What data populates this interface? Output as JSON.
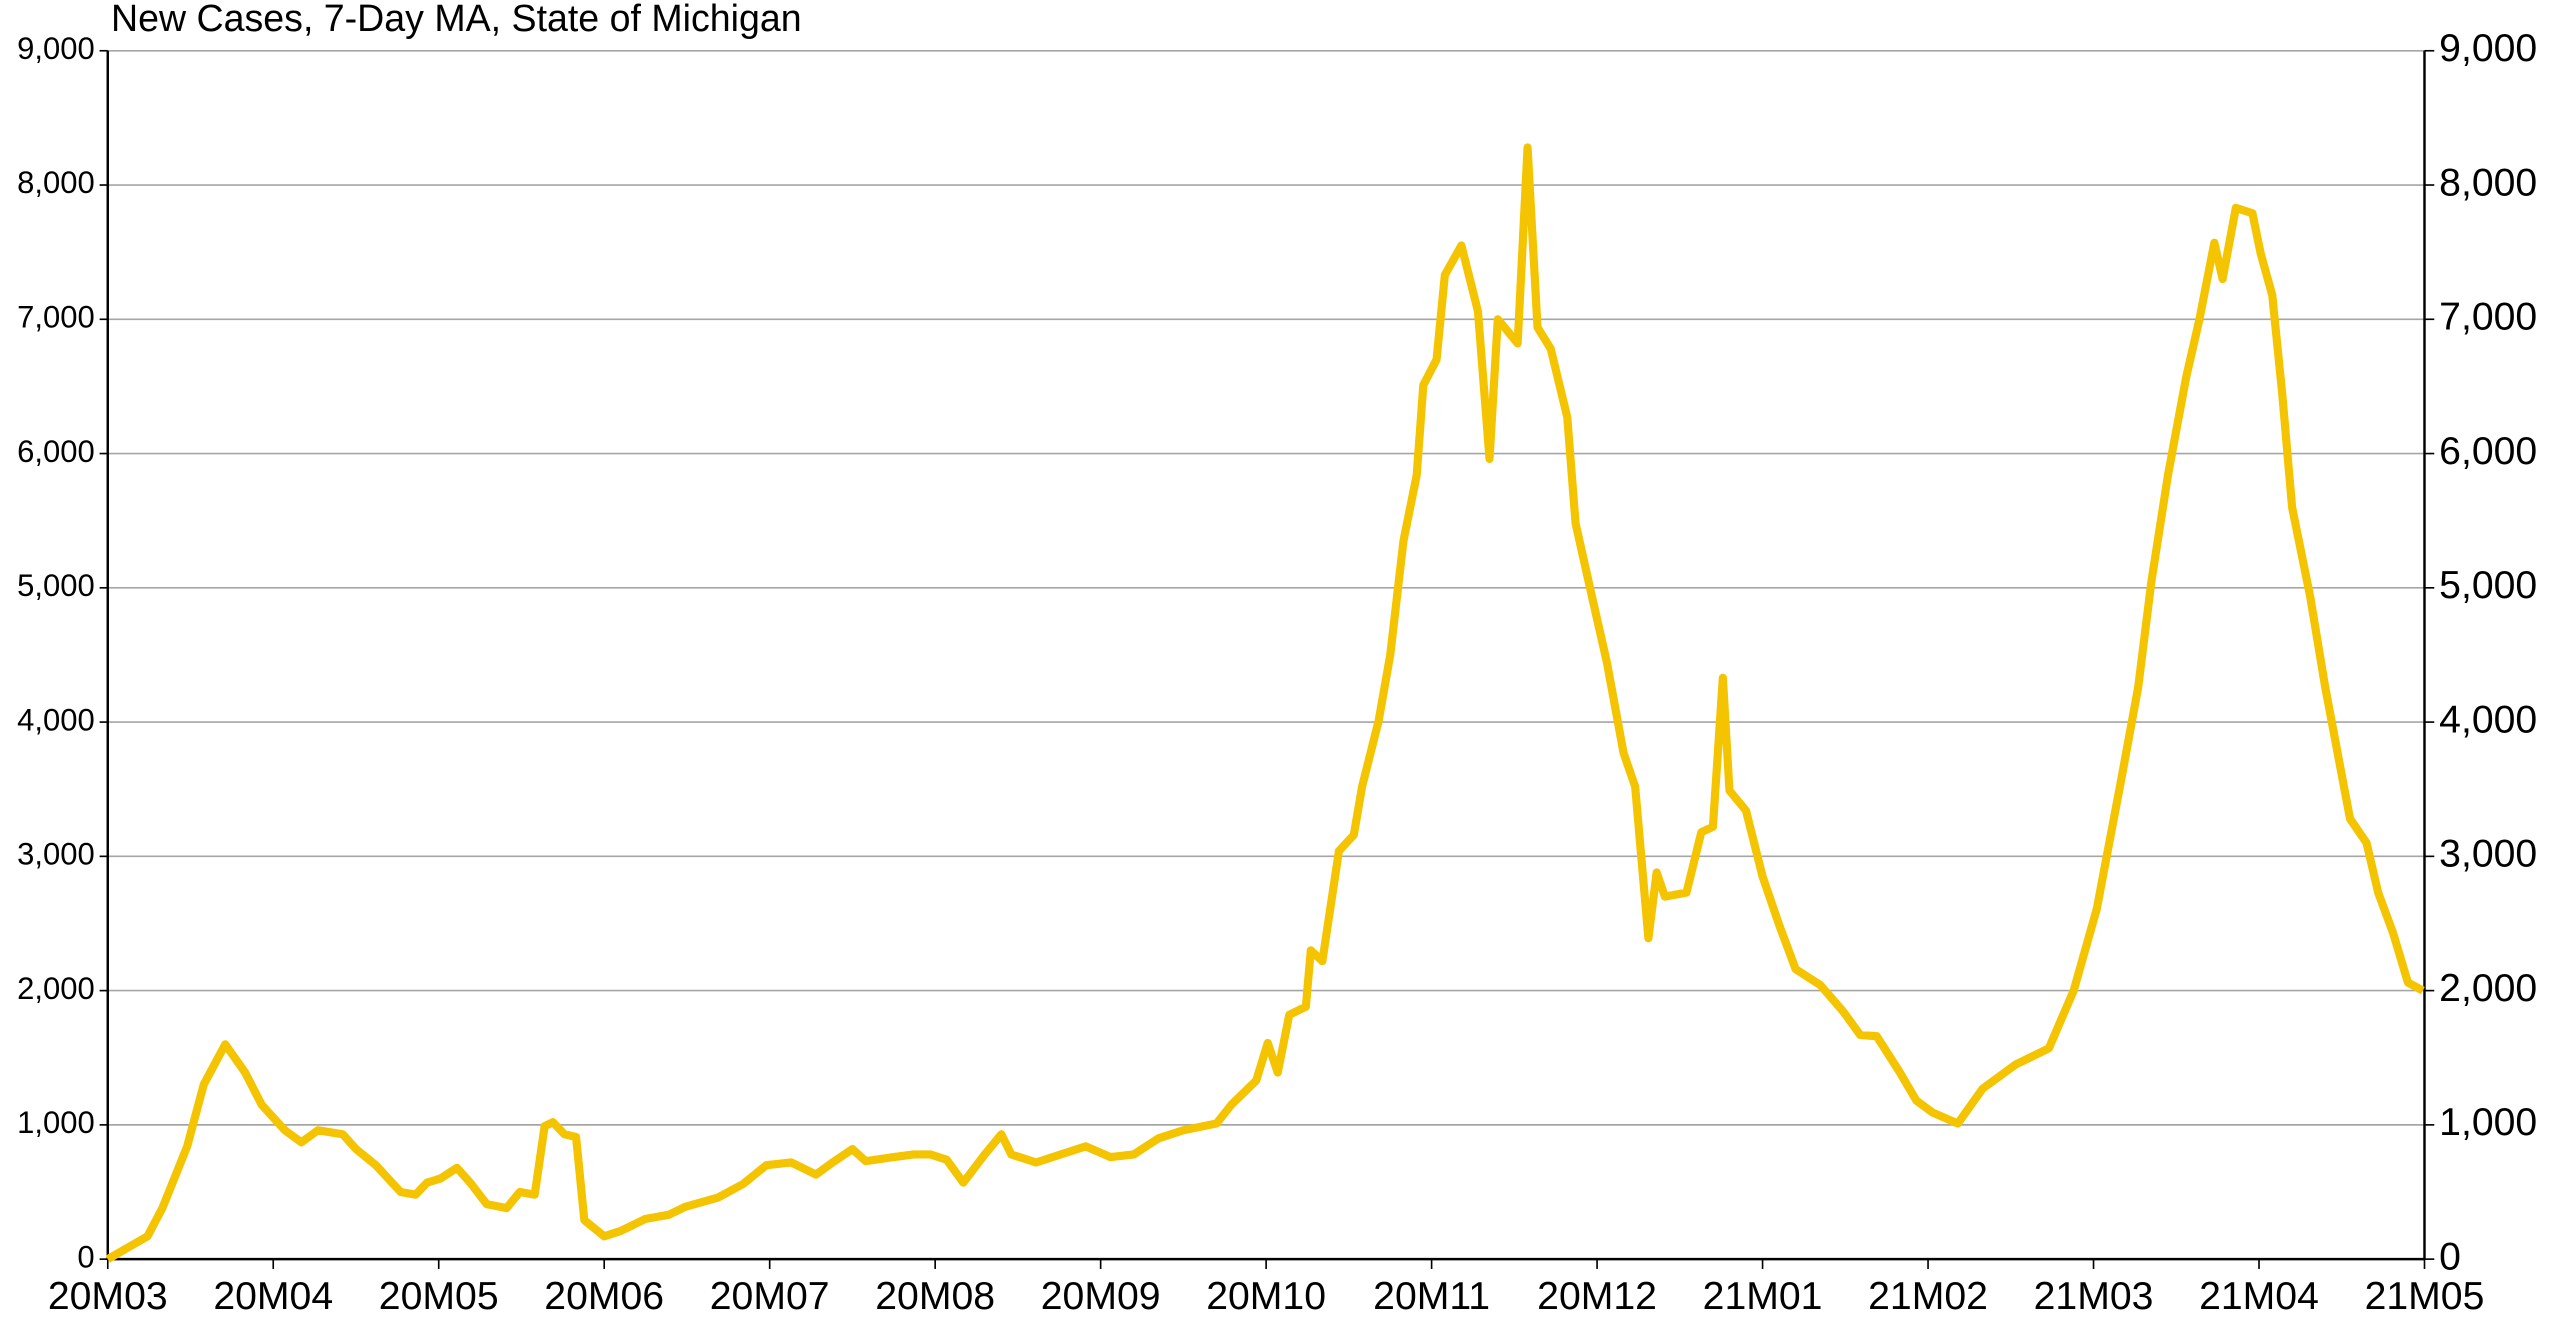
{
  "chart_data": {
    "type": "line",
    "title": "New Cases, 7-Day MA, State of Michigan",
    "x": [
      0,
      0.24,
      0.33,
      0.48,
      0.58,
      0.71,
      0.83,
      0.93,
      1.07,
      1.17,
      1.27,
      1.42,
      1.5,
      1.62,
      1.77,
      1.86,
      1.93,
      2.01,
      2.11,
      2.19,
      2.29,
      2.41,
      2.49,
      2.58,
      2.64,
      2.69,
      2.76,
      2.83,
      2.88,
      3,
      3.1,
      3.25,
      3.39,
      3.49,
      3.69,
      3.84,
      3.98,
      4.13,
      4.28,
      4.38,
      4.5,
      4.58,
      4.75,
      4.87,
      4.97,
      5.07,
      5.17,
      5.3,
      5.4,
      5.46,
      5.61,
      5.76,
      5.91,
      6.06,
      6.2,
      6.35,
      6.5,
      6.7,
      6.79,
      6.94,
      7.01,
      7.07,
      7.14,
      7.24,
      7.27,
      7.34,
      7.44,
      7.53,
      7.58,
      7.68,
      7.75,
      7.83,
      7.91,
      7.95,
      8.03,
      8.08,
      8.18,
      8.28,
      8.35,
      8.4,
      8.52,
      8.58,
      8.64,
      8.72,
      8.82,
      8.87,
      8.97,
      9.06,
      9.16,
      9.23,
      9.31,
      9.36,
      9.41,
      9.54,
      9.63,
      9.7,
      9.76,
      9.8,
      9.9,
      10,
      10.1,
      10.2,
      10.35,
      10.49,
      10.59,
      10.69,
      10.83,
      10.93,
      11.03,
      11.18,
      11.33,
      11.53,
      11.73,
      11.88,
      12.02,
      12.17,
      12.27,
      12.35,
      12.45,
      12.56,
      12.64,
      12.73,
      12.78,
      12.86,
      12.96,
      13.01,
      13.08,
      13.14,
      13.2,
      13.31,
      13.4,
      13.55,
      13.65,
      13.72,
      13.81,
      13.9,
      13.99
    ],
    "series": [
      {
        "name": "New Cases",
        "color": "#f5c400",
        "values": [
          0,
          170,
          380,
          840,
          1300,
          1600,
          1390,
          1150,
          960,
          870,
          960,
          930,
          820,
          700,
          500,
          480,
          570,
          600,
          680,
          570,
          410,
          380,
          500,
          480,
          990,
          1020,
          930,
          910,
          290,
          170,
          210,
          300,
          330,
          390,
          460,
          560,
          700,
          720,
          630,
          720,
          820,
          730,
          760,
          780,
          780,
          740,
          570,
          780,
          930,
          780,
          720,
          780,
          840,
          760,
          780,
          900,
          960,
          1010,
          1150,
          1330,
          1610,
          1390,
          1820,
          1880,
          2300,
          2220,
          3040,
          3160,
          3520,
          4010,
          4500,
          5350,
          5840,
          6510,
          6700,
          7330,
          7550,
          7060,
          5960,
          7000,
          6820,
          8280,
          6940,
          6780,
          6270,
          5480,
          4930,
          4440,
          3770,
          3520,
          2390,
          2880,
          2700,
          2730,
          3180,
          3220,
          4330,
          3490,
          3340,
          2850,
          2490,
          2160,
          2040,
          1840,
          1670,
          1660,
          1390,
          1180,
          1090,
          1010,
          1270,
          1450,
          1570,
          2000,
          2610,
          3590,
          4260,
          5050,
          5840,
          6570,
          7000,
          7570,
          7300,
          7830,
          7790,
          7490,
          7180,
          6450,
          5600,
          4930,
          4260,
          3280,
          3100,
          2730,
          2430,
          2060,
          2000
        ]
      }
    ],
    "xlim": [
      0,
      14
    ],
    "xticks": [
      {
        "value": 0,
        "label": "20M03"
      },
      {
        "value": 1,
        "label": "20M04"
      },
      {
        "value": 2,
        "label": "20M05"
      },
      {
        "value": 3,
        "label": "20M06"
      },
      {
        "value": 4,
        "label": "20M07"
      },
      {
        "value": 5,
        "label": "20M08"
      },
      {
        "value": 6,
        "label": "20M09"
      },
      {
        "value": 7,
        "label": "20M10"
      },
      {
        "value": 8,
        "label": "20M11"
      },
      {
        "value": 9,
        "label": "20M12"
      },
      {
        "value": 10,
        "label": "21M01"
      },
      {
        "value": 11,
        "label": "21M02"
      },
      {
        "value": 12,
        "label": "21M03"
      },
      {
        "value": 13,
        "label": "21M04"
      },
      {
        "value": 14,
        "label": "21M05"
      }
    ],
    "ylim": [
      0,
      9000
    ],
    "yticks": [
      0,
      {
        "value": 1000,
        "label": "1,000"
      },
      {
        "value": 2000,
        "label": "2,000"
      },
      {
        "value": 3000,
        "label": "3,000"
      },
      {
        "value": 4000,
        "label": "4,000"
      },
      {
        "value": 5000,
        "label": "5,000"
      },
      {
        "value": 6000,
        "label": "6,000"
      },
      {
        "value": 7000,
        "label": "7,000"
      },
      {
        "value": 8000,
        "label": "8,000"
      },
      {
        "value": 9000,
        "label": "9,000"
      }
    ],
    "y2lim": [
      0,
      9000
    ],
    "y2ticks": [
      0,
      {
        "value": 1000,
        "label": "1,000"
      },
      {
        "value": 2000,
        "label": "2,000"
      },
      {
        "value": 3000,
        "label": "3,000"
      },
      {
        "value": 4000,
        "label": "4,000"
      },
      {
        "value": 5000,
        "label": "5,000"
      },
      {
        "value": 6000,
        "label": "6,000"
      },
      {
        "value": 7000,
        "label": "7,000"
      },
      {
        "value": 8000,
        "label": "8,000"
      },
      {
        "value": 9000,
        "label": "9,000"
      }
    ],
    "grid": true
  }
}
